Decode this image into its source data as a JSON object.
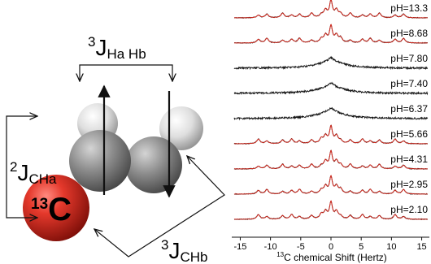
{
  "molecule": {
    "coupling_hh": {
      "sup": "3",
      "base": "J",
      "sub": "Ha Hb"
    },
    "coupling_cha": {
      "sup": "2",
      "base": "J",
      "sub": "CHa"
    },
    "coupling_chb": {
      "sup": "3",
      "base": "J",
      "sub": "CHb"
    },
    "carbon_label": {
      "sup": "13",
      "base": "C"
    },
    "colors": {
      "carbon13": "#d42a1f",
      "carbon": "#7f7f7f",
      "hydrogen": "#d8d8d8"
    }
  },
  "chart_data": {
    "type": "line",
    "x_ticks": [
      -15,
      -10,
      -5,
      0,
      5,
      10,
      15
    ],
    "xlim": [
      -16,
      16
    ],
    "xlabel": {
      "sup": "13",
      "text": "C chemical Shift (Hertz)"
    },
    "spectra": [
      {
        "label": "pH=13.3",
        "fit": true
      },
      {
        "label": "pH=8.68",
        "fit": true
      },
      {
        "label": "pH=7.80",
        "fit": false
      },
      {
        "label": "pH=7.40",
        "fit": false
      },
      {
        "label": "pH=6.37",
        "fit": false
      },
      {
        "label": "pH=5.66",
        "fit": true
      },
      {
        "label": "pH=4.31",
        "fit": true
      },
      {
        "label": "pH=2.95",
        "fit": true
      },
      {
        "label": "pH=2.10",
        "fit": true
      }
    ],
    "colors": {
      "data": "#111111",
      "fit": "#d42a1f"
    }
  }
}
